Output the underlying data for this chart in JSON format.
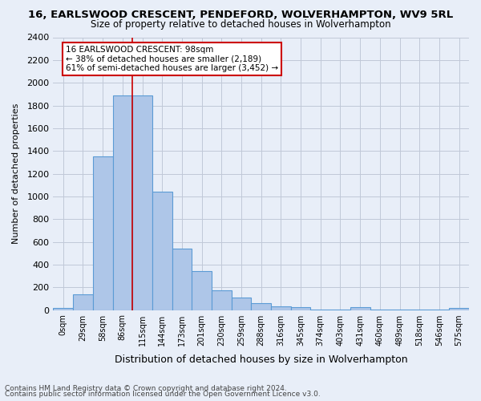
{
  "title1": "16, EARLSWOOD CRESCENT, PENDEFORD, WOLVERHAMPTON, WV9 5RL",
  "title2": "Size of property relative to detached houses in Wolverhampton",
  "xlabel": "Distribution of detached houses by size in Wolverhampton",
  "ylabel": "Number of detached properties",
  "bar_values": [
    15,
    135,
    1350,
    1890,
    1890,
    1040,
    540,
    340,
    170,
    110,
    60,
    35,
    25,
    5,
    5,
    25,
    5,
    5,
    5,
    5,
    15
  ],
  "bar_labels": [
    "0sqm",
    "29sqm",
    "58sqm",
    "86sqm",
    "115sqm",
    "144sqm",
    "173sqm",
    "201sqm",
    "230sqm",
    "259sqm",
    "288sqm",
    "316sqm",
    "345sqm",
    "374sqm",
    "403sqm",
    "431sqm",
    "460sqm",
    "489sqm",
    "518sqm",
    "546sqm",
    "575sqm"
  ],
  "bar_color": "#aec6e8",
  "bar_edge_color": "#5b9bd5",
  "annotation_title": "16 EARLSWOOD CRESCENT: 98sqm",
  "annotation_line1": "← 38% of detached houses are smaller (2,189)",
  "annotation_line2": "61% of semi-detached houses are larger (3,452) →",
  "annotation_box_color": "#ffffff",
  "annotation_box_edge": "#cc0000",
  "property_line_x": 3.5,
  "ylim": [
    0,
    2400
  ],
  "yticks": [
    0,
    200,
    400,
    600,
    800,
    1000,
    1200,
    1400,
    1600,
    1800,
    2000,
    2200,
    2400
  ],
  "grid_color": "#c0c8d8",
  "bg_color": "#e8eef8",
  "footnote1": "Contains HM Land Registry data © Crown copyright and database right 2024.",
  "footnote2": "Contains public sector information licensed under the Open Government Licence v3.0."
}
